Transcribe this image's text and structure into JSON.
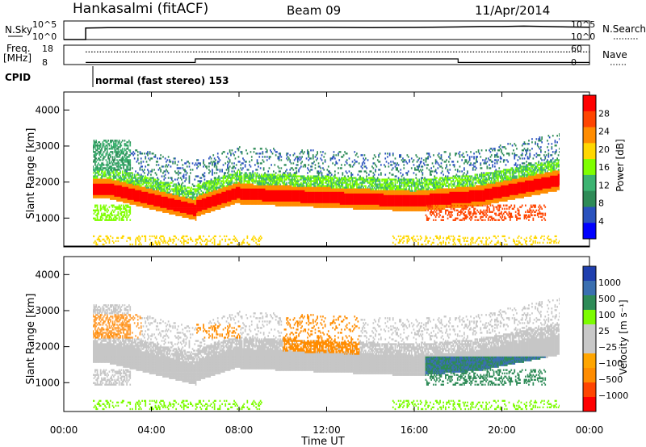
{
  "header": {
    "station": "Hankasalmi (fitACF)",
    "beam": "Beam 09",
    "date": "11/Apr/2014"
  },
  "colors": {
    "power": [
      "#0000ff",
      "#2a52be",
      "#2e8b57",
      "#3cb371",
      "#7fff00",
      "#ffd700",
      "#ff8c00",
      "#ff4500",
      "#ff0000"
    ],
    "velocity": [
      "#ff0000",
      "#ff4500",
      "#ff8c00",
      "#ffa500",
      "#c8c8c8",
      "#c8c8c8",
      "#7cfc00",
      "#2e8b57",
      "#3a6fb0",
      "#1f3fae"
    ]
  },
  "chart_data": [
    {
      "type": "line",
      "name": "noise-panel",
      "left_label": "N.Sky",
      "left_ticks": [
        "10^5",
        "10^0"
      ],
      "right_label": "N.Search",
      "right_ticks": [
        "10^5",
        "10^0"
      ],
      "series": [
        {
          "x": [
            0,
            1,
            1,
            2,
            4,
            6,
            8,
            10,
            12,
            14,
            16,
            18,
            19,
            20,
            21,
            22,
            23,
            24
          ],
          "y": [
            0,
            0,
            3.1,
            3.2,
            3.2,
            3.2,
            3.2,
            3.2,
            3.25,
            3.2,
            3.25,
            3.4,
            3.5,
            3.5,
            3.6,
            3.5,
            3.4,
            3.3
          ]
        }
      ],
      "ylim": [
        0,
        5
      ]
    },
    {
      "type": "line",
      "name": "freq-panel",
      "left_label": "Freq.",
      "left_unit": "[MHz]",
      "left_ticks": [
        "18",
        "8"
      ],
      "ylim": [
        8,
        18
      ],
      "right_label": "Nave",
      "right_ticks": [
        "60",
        "0"
      ],
      "y2lim": [
        0,
        60
      ],
      "series": [
        {
          "x": [
            1,
            6,
            6,
            18,
            18,
            24
          ],
          "y": [
            9.1,
            9.1,
            10.9,
            10.9,
            9.1,
            9.1
          ]
        },
        {
          "x": [
            1,
            24
          ],
          "y": [
            14.5,
            14.5
          ],
          "dashed": true
        }
      ],
      "cpid_label": "CPID",
      "cpid_text": "normal (fast stereo) 153"
    },
    {
      "type": "heatmap",
      "name": "power",
      "ylabel": "Slant Range [km]",
      "ylim": [
        200,
        4500
      ],
      "yticks": [
        "4000",
        "3000",
        "2000",
        "1000"
      ],
      "colorbar_label": "Power [dB]",
      "colorbar_ticks": [
        "28",
        "24",
        "20",
        "16",
        "12",
        "8",
        "4"
      ]
    },
    {
      "type": "heatmap",
      "name": "velocity",
      "ylabel": "Slant Range [km]",
      "ylim": [
        200,
        4500
      ],
      "yticks": [
        "4000",
        "3000",
        "2000",
        "1000"
      ],
      "colorbar_label": "Velocity [m s⁻¹]",
      "colorbar_ticks": [
        "1000",
        "500",
        "100",
        "25",
        "−25",
        "−100",
        "−500",
        "−1000"
      ]
    }
  ],
  "x_axis": {
    "label": "Time UT",
    "ticks": [
      "00:00",
      "04:00",
      "08:00",
      "12:00",
      "16:00",
      "20:00",
      "00:00"
    ],
    "range_hours": [
      0,
      24
    ]
  }
}
